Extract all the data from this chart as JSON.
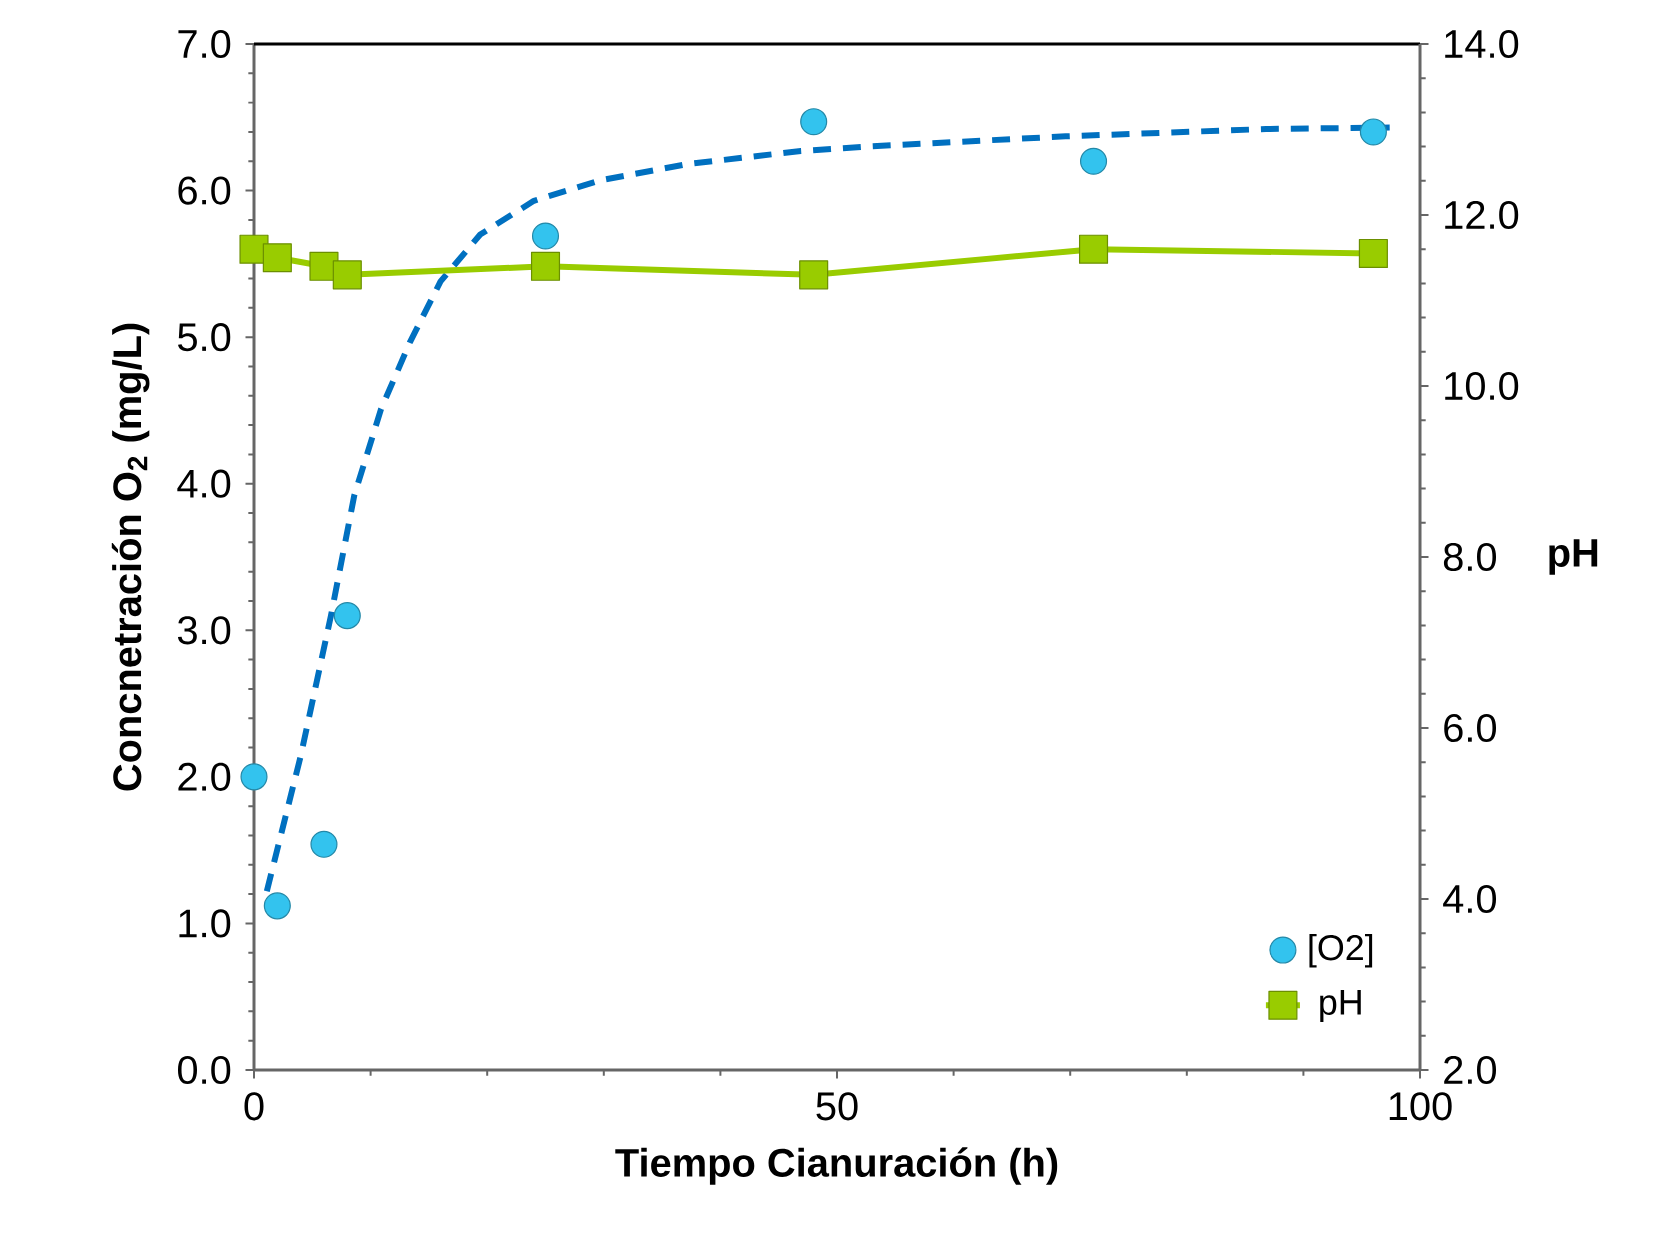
{
  "chart_data": {
    "type": "line",
    "xlabel": "Tiempo Cianuración (h)",
    "ylabel": "Concnetración O$_{2}$ (mg/L)",
    "y2label": "pH",
    "xlim": [
      0,
      100
    ],
    "xticks": [
      0,
      50,
      100
    ],
    "ylim": [
      0,
      7
    ],
    "yticks": [
      {
        "value": 0,
        "label": "0.0"
      },
      {
        "value": 1,
        "label": "1.0"
      },
      {
        "value": 2,
        "label": "2.0"
      },
      {
        "value": 3,
        "label": "3.0"
      },
      {
        "value": 4,
        "label": "4.0"
      },
      {
        "value": 5,
        "label": "5.0"
      },
      {
        "value": 6,
        "label": "6.0"
      },
      {
        "value": 7,
        "label": "7.0"
      }
    ],
    "y2lim": [
      2,
      14
    ],
    "y2ticks": [
      {
        "value": 2,
        "label": "2.0"
      },
      {
        "value": 4,
        "label": "4.0"
      },
      {
        "value": 6,
        "label": "6.0"
      },
      {
        "value": 8,
        "label": "8.0"
      },
      {
        "value": 10,
        "label": "10.0"
      },
      {
        "value": 12,
        "label": "12.0"
      },
      {
        "value": 14,
        "label": "14.0"
      }
    ],
    "legend": "bottom right",
    "series": [
      {
        "name": "[O2]",
        "type": "scatter",
        "marker": "circle",
        "color": "#33c3ee",
        "x": [
          0,
          2,
          6,
          8,
          25,
          48,
          72,
          96
        ],
        "values": [
          2.0,
          1.12,
          1.54,
          3.1,
          5.69,
          6.47,
          6.2,
          6.4
        ]
      },
      {
        "name": "pH",
        "type": "line",
        "marker": "square",
        "axis": "y2",
        "color": "#99cc00",
        "x": [
          0,
          2,
          6,
          8,
          25,
          48,
          72,
          96
        ],
        "values": [
          11.6,
          11.5,
          11.4,
          11.3,
          11.4,
          11.3,
          11.6,
          11.55
        ]
      },
      {
        "marker": "none",
        "line_style": "dashed",
        "color": "#0070c0",
        "x": [
          1.1,
          4,
          6.6,
          8.6,
          10.9,
          13.4,
          16,
          19.4,
          24,
          29.7,
          37.1,
          46.9,
          52.5,
          69.6,
          86.8,
          97.4
        ],
        "values": [
          1.22,
          2.14,
          3.1,
          3.92,
          4.51,
          4.97,
          5.38,
          5.7,
          5.93,
          6.07,
          6.18,
          6.27,
          6.3,
          6.37,
          6.42,
          6.43
        ]
      }
    ]
  }
}
